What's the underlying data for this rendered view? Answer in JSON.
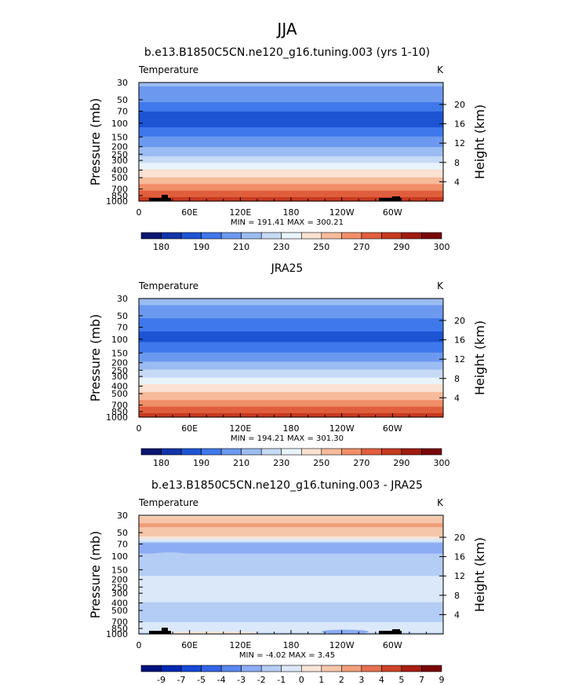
{
  "figure": {
    "title": "JJA"
  },
  "chart_data": [
    {
      "type": "heatmap",
      "title": "b.e13.B1850C5CN.ne120_g16.tuning.003 (yrs 1-10)",
      "variable": "Temperature",
      "units": "K",
      "ylabel": "Pressure (mb)",
      "y2label": "Height (km)",
      "x_ticks": [
        "0",
        "60E",
        "120E",
        "180",
        "120W",
        "60W"
      ],
      "y_ticks": [
        "30",
        "50",
        "70",
        "100",
        "150",
        "200",
        "250",
        "300",
        "400",
        "500",
        "700",
        "850",
        "1000"
      ],
      "y2_ticks": [
        "20",
        "16",
        "12",
        "8",
        "4"
      ],
      "stats": "MIN = 191.41   MAX = 300.21",
      "min": 191.41,
      "max": 300.21,
      "colorbar_labels": [
        "180",
        "190",
        "210",
        "230",
        "250",
        "270",
        "290",
        "300"
      ],
      "profile": [
        {
          "p": 30,
          "t": 222
        },
        {
          "p": 50,
          "t": 212
        },
        {
          "p": 70,
          "t": 200
        },
        {
          "p": 100,
          "t": 196
        },
        {
          "p": 150,
          "t": 210
        },
        {
          "p": 200,
          "t": 220
        },
        {
          "p": 250,
          "t": 228
        },
        {
          "p": 300,
          "t": 236
        },
        {
          "p": 400,
          "t": 250
        },
        {
          "p": 500,
          "t": 260
        },
        {
          "p": 700,
          "t": 277
        },
        {
          "p": 850,
          "t": 287
        },
        {
          "p": 1000,
          "t": 297
        }
      ],
      "colormap": "temp",
      "terrain": true
    },
    {
      "type": "heatmap",
      "title": "JRA25",
      "variable": "Temperature",
      "units": "K",
      "ylabel": "Pressure (mb)",
      "y2label": "Height (km)",
      "x_ticks": [
        "0",
        "60E",
        "120E",
        "180",
        "120W",
        "60W"
      ],
      "y_ticks": [
        "30",
        "50",
        "70",
        "100",
        "150",
        "200",
        "250",
        "300",
        "400",
        "500",
        "700",
        "850",
        "1000"
      ],
      "y2_ticks": [
        "20",
        "16",
        "12",
        "8",
        "4"
      ],
      "stats": "MIN = 194.21   MAX = 301.30",
      "min": 194.21,
      "max": 301.3,
      "colorbar_labels": [
        "180",
        "190",
        "210",
        "230",
        "250",
        "270",
        "290",
        "300"
      ],
      "profile": [
        {
          "p": 30,
          "t": 225
        },
        {
          "p": 50,
          "t": 213
        },
        {
          "p": 70,
          "t": 202
        },
        {
          "p": 100,
          "t": 197
        },
        {
          "p": 150,
          "t": 210
        },
        {
          "p": 200,
          "t": 221
        },
        {
          "p": 250,
          "t": 230
        },
        {
          "p": 300,
          "t": 238
        },
        {
          "p": 400,
          "t": 252
        },
        {
          "p": 500,
          "t": 262
        },
        {
          "p": 700,
          "t": 278
        },
        {
          "p": 850,
          "t": 288
        },
        {
          "p": 1000,
          "t": 298
        }
      ],
      "colormap": "temp",
      "terrain": false
    },
    {
      "type": "heatmap",
      "title": "b.e13.B1850C5CN.ne120_g16.tuning.003 - JRA25",
      "variable": "Temperature",
      "units": "K",
      "ylabel": "Pressure (mb)",
      "y2label": "Height (km)",
      "x_ticks": [
        "0",
        "60E",
        "120E",
        "180",
        "120W",
        "60W"
      ],
      "y_ticks": [
        "30",
        "50",
        "70",
        "100",
        "150",
        "200",
        "250",
        "300",
        "400",
        "500",
        "700",
        "850",
        "1000"
      ],
      "y2_ticks": [
        "20",
        "16",
        "12",
        "8",
        "4"
      ],
      "stats": "MIN =   -4.02   MAX =    3.45",
      "min": -4.02,
      "max": 3.45,
      "colorbar_labels": [
        "-9",
        "-7",
        "-5",
        "-4",
        "-3",
        "-2",
        "-1",
        "0",
        "1",
        "2",
        "3",
        "4",
        "5",
        "7",
        "9"
      ],
      "profile": [
        {
          "p": 30,
          "t": 0.8
        },
        {
          "p": 40,
          "t": 2.2
        },
        {
          "p": 50,
          "t": 1.6
        },
        {
          "p": 60,
          "t": 0.5
        },
        {
          "p": 70,
          "t": -2.5
        },
        {
          "p": 85,
          "t": -2.8
        },
        {
          "p": 100,
          "t": -1.5
        },
        {
          "p": 150,
          "t": -1.4
        },
        {
          "p": 200,
          "t": -0.7
        },
        {
          "p": 300,
          "t": -0.8
        },
        {
          "p": 500,
          "t": -1.2
        },
        {
          "p": 700,
          "t": -1.0
        },
        {
          "p": 850,
          "t": -0.6
        },
        {
          "p": 950,
          "t": -0.8
        },
        {
          "p": 1000,
          "t": -1.3
        }
      ],
      "colormap": "diff",
      "terrain": true
    }
  ],
  "colors": {
    "temp": [
      "#0a1670",
      "#1334a8",
      "#1d54d4",
      "#3e78eb",
      "#6c99ef",
      "#9bbcf3",
      "#c6daf6",
      "#e9f3fb",
      "#fbe1d2",
      "#f7bb9c",
      "#f08f68",
      "#e05e3d",
      "#c63a20",
      "#a11b10",
      "#780808"
    ],
    "diff": [
      "#00107c",
      "#0028b4",
      "#1648d8",
      "#3464e6",
      "#5a86ee",
      "#8cacf3",
      "#b4cdf5",
      "#dbe8f9",
      "#f8e4d6",
      "#f6c6aa",
      "#f19e7a",
      "#e67050",
      "#cc4428",
      "#a91e12",
      "#7a0606"
    ],
    "temp_levels": [
      180,
      190,
      200,
      210,
      220,
      230,
      240,
      250,
      260,
      270,
      280,
      290,
      300,
      310
    ],
    "diff_levels": [
      -9,
      -7,
      -5,
      -4,
      -3,
      -2,
      -1,
      0,
      1,
      2,
      3,
      4,
      5,
      7,
      9
    ]
  }
}
